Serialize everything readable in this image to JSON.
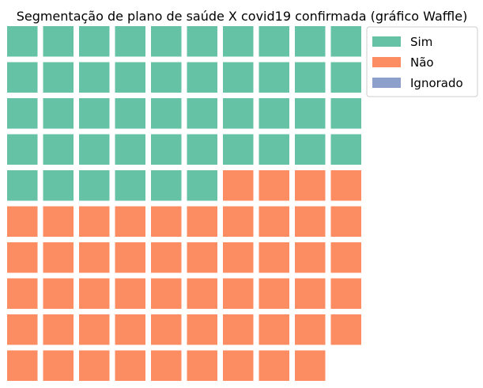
{
  "chart_data": {
    "type": "waffle",
    "title": "Segmentação de plano de saúde X covid19 confirmada (gráfico Waffle)",
    "rows": 10,
    "columns": 10,
    "fill_order": "row-major from top-left",
    "series": [
      {
        "name": "Sim",
        "value": 46,
        "color": "#66c2a5"
      },
      {
        "name": "Não",
        "value": 53,
        "color": "#fc8d62"
      },
      {
        "name": "Ignorado",
        "value": 0,
        "color": "#8da0cb"
      }
    ],
    "legend": {
      "position": "top-right",
      "entries": [
        "Sim",
        "Não",
        "Ignorado"
      ]
    }
  }
}
